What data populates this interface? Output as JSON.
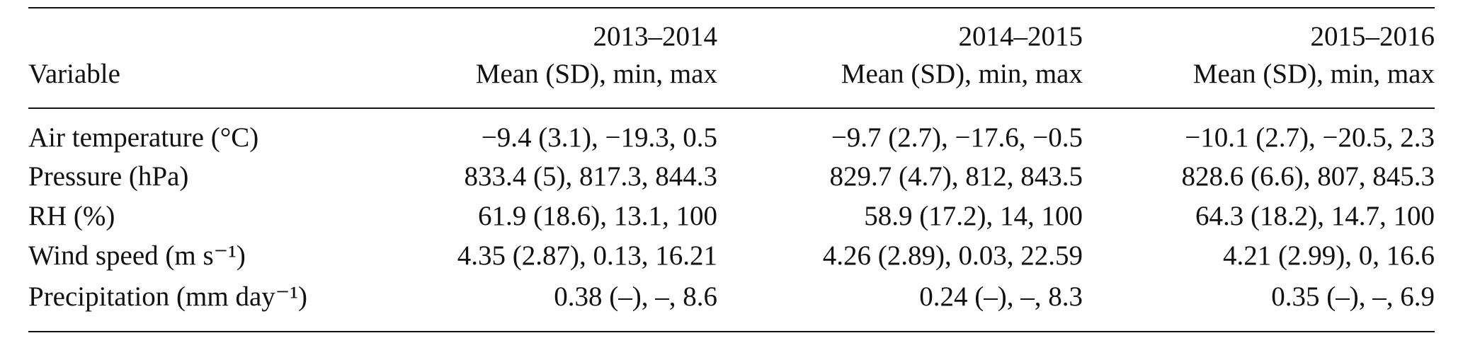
{
  "table": {
    "columns": [
      {
        "label": "Variable"
      },
      {
        "period": "2013–2014",
        "label": "Mean (SD), min, max"
      },
      {
        "period": "2014–2015",
        "label": "Mean (SD), min, max"
      },
      {
        "period": "2015–2016",
        "label": "Mean (SD), min, max"
      }
    ],
    "rows": [
      {
        "variable": "Air temperature (°C)",
        "cells": [
          "−9.4 (3.1), −19.3, 0.5",
          "−9.7 (2.7), −17.6, −0.5",
          "−10.1 (2.7), −20.5, 2.3"
        ]
      },
      {
        "variable": "Pressure (hPa)",
        "cells": [
          "833.4 (5), 817.3, 844.3",
          "829.7 (4.7), 812, 843.5",
          "828.6 (6.6), 807, 845.3"
        ]
      },
      {
        "variable": "RH (%)",
        "cells": [
          "61.9 (18.6), 13.1, 100",
          "58.9 (17.2), 14, 100",
          "64.3 (18.2), 14.7, 100"
        ]
      },
      {
        "variable": "Wind speed (m s⁻¹)",
        "cells": [
          "4.35 (2.87), 0.13, 16.21",
          "4.26 (2.89), 0.03, 22.59",
          "4.21 (2.99), 0, 16.6"
        ]
      },
      {
        "variable": "Precipitation (mm day⁻¹)",
        "cells": [
          "0.38 (–), –, 8.6",
          "0.24 (–), –, 8.3",
          "0.35 (–), –, 6.9"
        ]
      }
    ]
  }
}
